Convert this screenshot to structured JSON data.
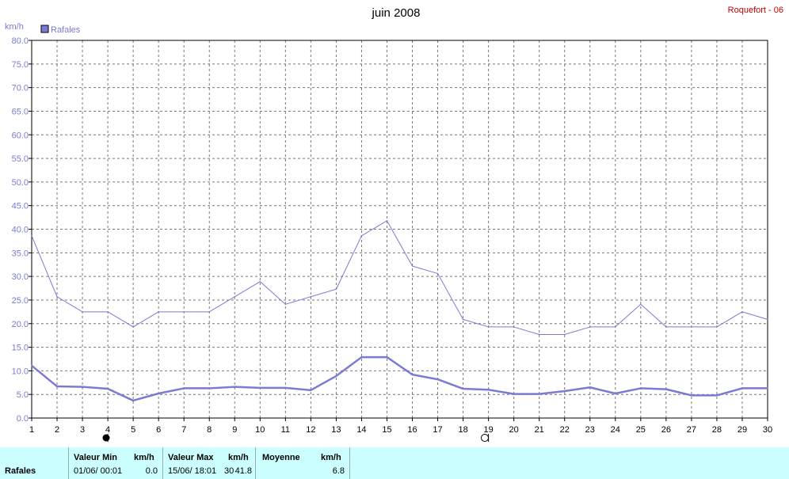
{
  "header": {
    "title": "juin 2008",
    "station": "Roquefort - 06",
    "unit": "km/h"
  },
  "legend": {
    "label": "Rafales",
    "color": "#7b7bd4"
  },
  "moon": {
    "full_label": "●",
    "new_label": "○"
  },
  "chart_data": {
    "type": "line",
    "title": "juin 2008",
    "xlabel": "",
    "ylabel": "km/h",
    "xlim": [
      1,
      30
    ],
    "ylim": [
      0,
      80
    ],
    "grid": true,
    "legend_position": "top-left",
    "x": [
      1,
      2,
      3,
      4,
      5,
      6,
      7,
      8,
      9,
      10,
      11,
      12,
      13,
      14,
      15,
      16,
      17,
      18,
      19,
      20,
      21,
      22,
      23,
      24,
      25,
      26,
      27,
      28,
      29,
      30
    ],
    "x_ticks": [
      "1",
      "2",
      "3",
      "4",
      "5",
      "6",
      "7",
      "8",
      "9",
      "10",
      "11",
      "12",
      "13",
      "14",
      "15",
      "16",
      "17",
      "18",
      "19",
      "20",
      "21",
      "22",
      "23",
      "24",
      "25",
      "26",
      "27",
      "28",
      "29",
      "30"
    ],
    "y_ticks": [
      "0.0",
      "5.0",
      "10.0",
      "15.0",
      "20.0",
      "25.0",
      "30.0",
      "35.0",
      "40.0",
      "45.0",
      "50.0",
      "55.0",
      "60.0",
      "65.0",
      "70.0",
      "75.0",
      "80.0"
    ],
    "series": [
      {
        "name": "Rafales",
        "style": "thin",
        "color": "#7b7bd4",
        "values": [
          38.6,
          25.7,
          22.5,
          22.5,
          19.3,
          22.5,
          22.5,
          22.5,
          25.7,
          28.9,
          24.1,
          25.7,
          27.3,
          38.6,
          41.8,
          32.2,
          30.6,
          20.9,
          19.3,
          19.3,
          17.7,
          17.7,
          19.3,
          19.3,
          24.1,
          19.3,
          19.3,
          19.3,
          22.5,
          20.9
        ]
      },
      {
        "style": "thick",
        "color": "#7b7bd4",
        "values": [
          11.1,
          6.7,
          6.6,
          6.2,
          3.7,
          5.2,
          6.3,
          6.3,
          6.6,
          6.4,
          6.4,
          5.9,
          8.9,
          12.9,
          12.9,
          9.2,
          8.2,
          6.2,
          6.0,
          5.1,
          5.1,
          5.7,
          6.5,
          5.2,
          6.3,
          6.1,
          4.8,
          4.8,
          6.3,
          6.3
        ]
      }
    ]
  },
  "stats": {
    "row_label": "Rafales",
    "min_header": "Valeur Min",
    "min_unit": "km/h",
    "min_date": "01/06/  00:01",
    "min_value": "0.0",
    "max_header": "Valeur Max",
    "max_unit": "km/h",
    "max_date": "15/06/  18:01",
    "max_date_tail": "30",
    "max_value": "41.8",
    "avg_header": "Moyenne",
    "avg_unit": "km/h",
    "avg_value": "6.8"
  }
}
